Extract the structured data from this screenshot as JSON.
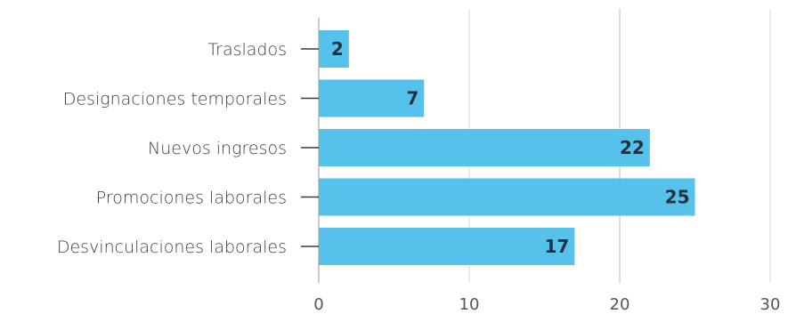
{
  "chart_data": {
    "type": "bar",
    "orientation": "horizontal",
    "categories": [
      "Traslados",
      "Designaciones temporales",
      "Nuevos ingresos",
      "Promociones laborales",
      "Desvinculaciones laborales"
    ],
    "values": [
      2,
      7,
      22,
      25,
      17
    ],
    "xlim": [
      0,
      30
    ],
    "xticks": [
      "0",
      "10",
      "20",
      "30"
    ],
    "grid": "vertical",
    "bar_color": "#56c1ea",
    "title": "",
    "xlabel": "",
    "ylabel": ""
  }
}
